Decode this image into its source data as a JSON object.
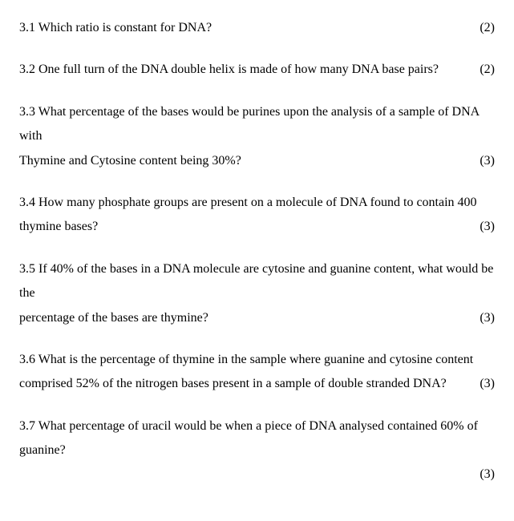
{
  "questions": [
    {
      "number": "3.1",
      "lines": [
        "Which ratio is constant for DNA?"
      ],
      "marks": "(2)"
    },
    {
      "number": "3.2",
      "lines": [
        "One full turn of the DNA double helix is made of how many DNA base pairs?"
      ],
      "marks": "(2)"
    },
    {
      "number": "3.3",
      "lines": [
        "What percentage of the bases would be purines upon the analysis of a sample of DNA with",
        "Thymine and Cytosine content being 30%?"
      ],
      "marks": "(3)"
    },
    {
      "number": "3.4",
      "lines": [
        "How many phosphate groups are present on a molecule of DNA found to contain 400",
        "thymine bases?"
      ],
      "marks": "(3)"
    },
    {
      "number": "3.5",
      "lines": [
        "If 40% of the bases in a DNA molecule are cytosine and guanine content, what would be the",
        "percentage of the bases are thymine?"
      ],
      "marks": "(3)"
    },
    {
      "number": "3.6",
      "lines": [
        "What is the percentage of thymine in the sample where guanine  and cytosine content",
        "comprised 52% of the nitrogen bases present in a sample of double stranded DNA?"
      ],
      "marks": "(3)"
    },
    {
      "number": "3.7",
      "lines": [
        "What percentage of uracil would be when a piece of DNA analysed contained 60% of",
        "guanine?"
      ],
      "marks": "(3)",
      "marks_below": true
    }
  ]
}
